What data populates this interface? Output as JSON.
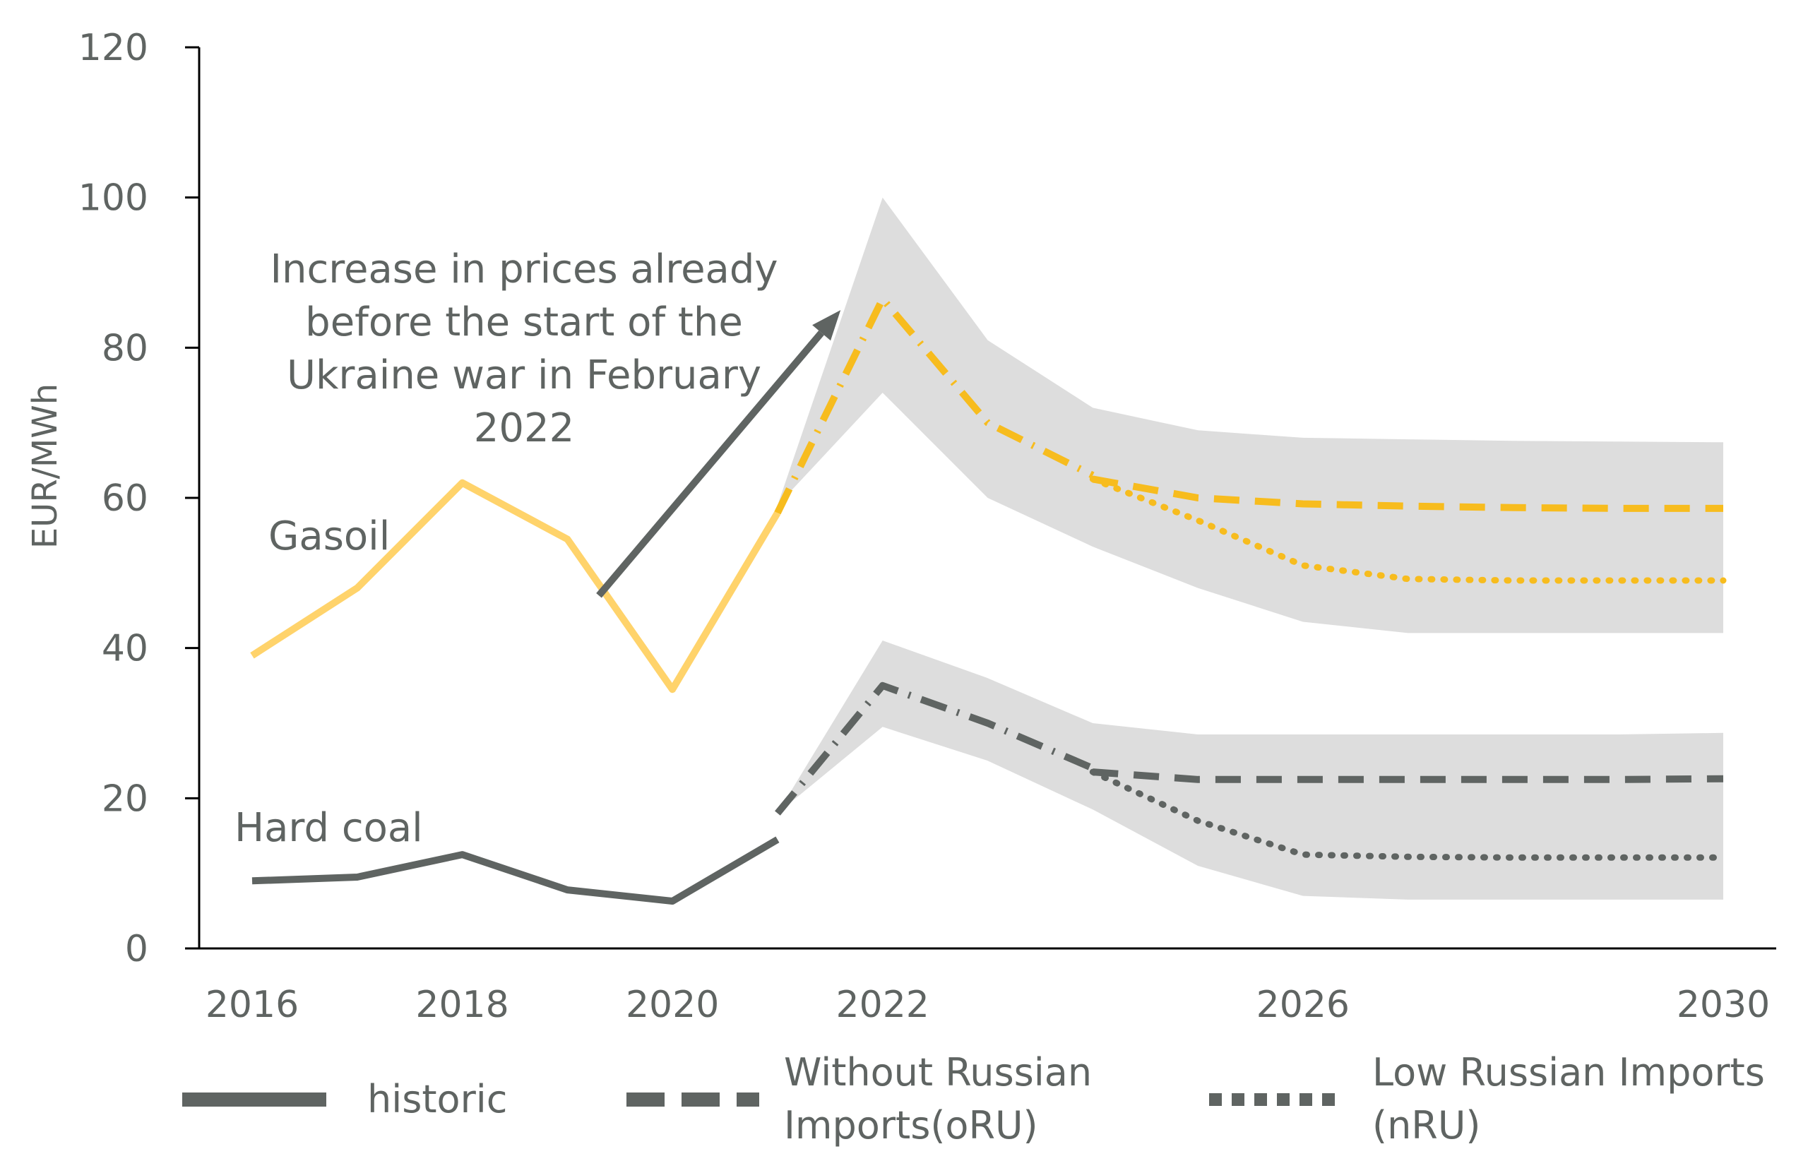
{
  "chart_data": {
    "type": "line",
    "ylabel": "EUR/MWh",
    "xlabel": "",
    "xlim": [
      2016,
      2030
    ],
    "ylim": [
      0,
      120
    ],
    "x_ticks": [
      2016,
      2018,
      2020,
      2022,
      2026,
      2030
    ],
    "y_ticks": [
      0,
      20,
      40,
      60,
      80,
      100,
      120
    ],
    "grid": false,
    "legend_position": "bottom",
    "colors": {
      "gasoil": "#ffd36b",
      "gasoil_scenario": "#f7bc1e",
      "hard_coal": "#5f6462",
      "band": "#dddddd",
      "arrow": "#5f6462"
    },
    "series_labels": {
      "gasoil": "Gasoil",
      "hard_coal": "Hard coal"
    },
    "annotation": {
      "lines": [
        "Increase in prices already",
        "before the start of the",
        "Ukraine war in February",
        "2022"
      ],
      "arrow_from": [
        2019.3,
        47
      ],
      "arrow_to": [
        2021.6,
        85
      ]
    },
    "legend": {
      "historic": "historic",
      "oRU": [
        "Without Russian",
        "Imports(oRU)"
      ],
      "nRU": [
        "Low Russian Imports",
        "(nRU)"
      ]
    },
    "gasoil": {
      "historic": {
        "x": [
          2016,
          2017,
          2018,
          2019,
          2020,
          2021
        ],
        "y": [
          39,
          48,
          62,
          54.5,
          34.5,
          58
        ]
      },
      "transition": {
        "x": [
          2021,
          2022,
          2023,
          2024
        ],
        "y": [
          58,
          86.5,
          70,
          63
        ]
      },
      "oRU": {
        "x": [
          2024,
          2025,
          2026,
          2027,
          2028,
          2029,
          2030
        ],
        "y": [
          62.5,
          60,
          59.2,
          58.9,
          58.7,
          58.6,
          58.6
        ]
      },
      "nRU": {
        "x": [
          2024,
          2025,
          2026,
          2027,
          2028,
          2029,
          2030
        ],
        "y": [
          62.5,
          57,
          51,
          49.2,
          49,
          49,
          49
        ]
      },
      "band": {
        "x": [
          2021,
          2022,
          2023,
          2024,
          2025,
          2026,
          2027,
          2028,
          2029,
          2030
        ],
        "upper": [
          59,
          100,
          81,
          72,
          69,
          68,
          67.8,
          67.6,
          67.5,
          67.4
        ],
        "lower": [
          59,
          74,
          60,
          53.5,
          48,
          43.5,
          42,
          42,
          42,
          42
        ]
      }
    },
    "hard_coal": {
      "historic": {
        "x": [
          2016,
          2017,
          2018,
          2019,
          2020,
          2021
        ],
        "y": [
          9,
          9.5,
          12.5,
          7.8,
          6.3,
          14.5
        ]
      },
      "transition": {
        "x": [
          2021,
          2022,
          2023,
          2024
        ],
        "y": [
          18,
          35,
          30,
          24
        ]
      },
      "oRU": {
        "x": [
          2024,
          2025,
          2026,
          2027,
          2028,
          2029,
          2030
        ],
        "y": [
          23.5,
          22.5,
          22.5,
          22.5,
          22.5,
          22.5,
          22.6
        ]
      },
      "nRU": {
        "x": [
          2024,
          2025,
          2026,
          2027,
          2028,
          2029,
          2030
        ],
        "y": [
          23.5,
          17,
          12.5,
          12.2,
          12.1,
          12.1,
          12.1
        ]
      },
      "band": {
        "x": [
          2021,
          2022,
          2023,
          2024,
          2025,
          2026,
          2027,
          2028,
          2029,
          2030
        ],
        "upper": [
          18,
          41,
          36,
          30,
          28.5,
          28.5,
          28.5,
          28.5,
          28.5,
          28.7
        ],
        "lower": [
          18,
          29.5,
          25,
          18.5,
          11,
          7,
          6.5,
          6.5,
          6.5,
          6.5
        ]
      }
    }
  }
}
